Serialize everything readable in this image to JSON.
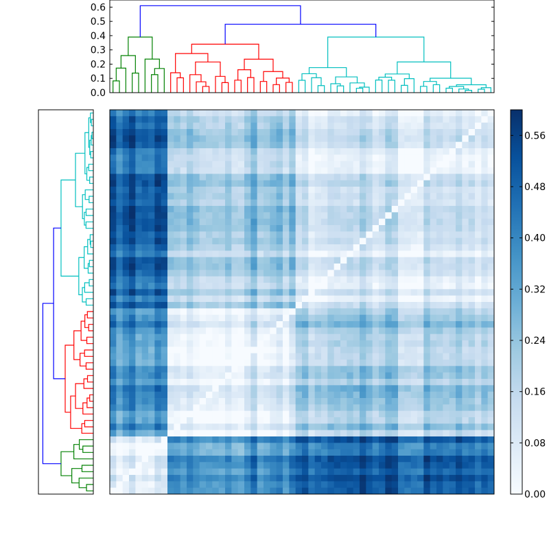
{
  "chart_data": [
    {
      "type": "dendrogram",
      "orientation": "top",
      "ylim": [
        0,
        0.65
      ],
      "yticks": [
        "0.0",
        "0.1",
        "0.2",
        "0.3",
        "0.4",
        "0.5",
        "0.6"
      ],
      "ytick_values": [
        0,
        0.1,
        0.2,
        0.3,
        0.4,
        0.5,
        0.6
      ],
      "leaf_count": 60,
      "clusters": [
        {
          "color": "#008000",
          "leaves": 9,
          "merge_height": 0.39
        },
        {
          "color": "#ff0000",
          "leaves": 20,
          "merge_height": 0.34
        },
        {
          "color": "#00bfbf",
          "leaves": 31,
          "merge_height": 0.39
        }
      ],
      "link_color": "#0000ff",
      "top_merge_height": 0.61
    },
    {
      "type": "dendrogram",
      "orientation": "left",
      "leaf_count": 60,
      "clusters": [
        {
          "color": "#008000"
        },
        {
          "color": "#ff0000"
        },
        {
          "color": "#00bfbf"
        }
      ],
      "link_color": "#0000ff"
    },
    {
      "type": "heatmap",
      "rows": 60,
      "cols": 60,
      "value_range": [
        0,
        0.6
      ],
      "colormap": "Blues",
      "diagonal_value": 0.0,
      "colorbar": {
        "min": 0.0,
        "max": 0.6,
        "ticks": [
          "0.00",
          "0.08",
          "0.16",
          "0.24",
          "0.32",
          "0.40",
          "0.48",
          "0.56"
        ],
        "tick_values": [
          0,
          0.08,
          0.16,
          0.24,
          0.32,
          0.4,
          0.48,
          0.56
        ]
      }
    }
  ]
}
